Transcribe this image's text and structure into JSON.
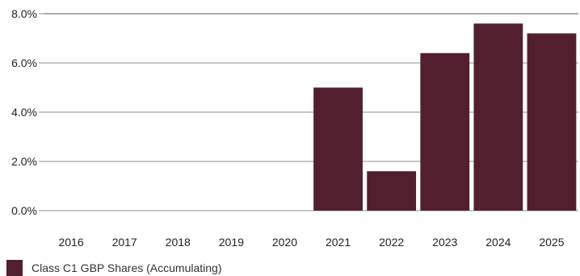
{
  "chart_data": {
    "type": "bar",
    "categories": [
      "2016",
      "2017",
      "2018",
      "2019",
      "2020",
      "2021",
      "2022",
      "2023",
      "2024",
      "2025"
    ],
    "series": [
      {
        "name": "Class C1 GBP Shares (Accumulating)",
        "values": [
          null,
          null,
          null,
          null,
          null,
          5.0,
          1.6,
          6.4,
          7.6,
          7.2
        ],
        "color": "#521f2e"
      }
    ],
    "y_ticks": [
      "0.0%",
      "2.0%",
      "4.0%",
      "6.0%",
      "8.0%"
    ],
    "ylim": [
      0,
      8
    ],
    "grid": "horizontal",
    "legend_position": "bottom-left"
  }
}
